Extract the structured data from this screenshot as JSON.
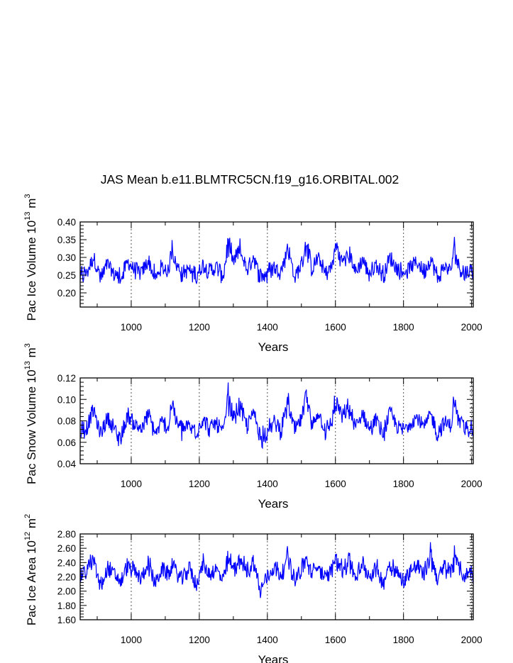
{
  "chart_data": {
    "title": "JAS Mean b.e11.BLMTRC5CN.f19_g16.ORBITAL.002",
    "panels": [
      {
        "type": "line",
        "key": "ice-volume",
        "xlabel": "Years",
        "ylabel_parts": {
          "pre": "Pac Ice Volume 10",
          "exp": "13",
          "mid": " m",
          "exp2": "3"
        },
        "xlim": [
          850,
          2005
        ],
        "ylim": [
          0.16,
          0.4
        ],
        "xticks": [
          1000,
          1200,
          1400,
          1600,
          1800,
          2000
        ],
        "xtick_labels": [
          "1000",
          "1200",
          "1400",
          "1600",
          "1800",
          "2000"
        ],
        "yticks": [
          0.2,
          0.25,
          0.3,
          0.35,
          0.4
        ],
        "ytick_labels": [
          "0.20",
          "0.25",
          "0.30",
          "0.35",
          "0.40"
        ],
        "grid_x_dotted": true,
        "color": "#0000ff",
        "x": [
          850,
          870,
          890,
          910,
          930,
          950,
          970,
          990,
          1010,
          1030,
          1050,
          1070,
          1090,
          1110,
          1120,
          1130,
          1150,
          1170,
          1190,
          1210,
          1230,
          1250,
          1270,
          1285,
          1300,
          1320,
          1340,
          1360,
          1380,
          1400,
          1420,
          1440,
          1460,
          1480,
          1500,
          1515,
          1530,
          1550,
          1570,
          1590,
          1600,
          1620,
          1640,
          1660,
          1680,
          1700,
          1720,
          1740,
          1760,
          1780,
          1800,
          1820,
          1840,
          1860,
          1880,
          1900,
          1920,
          1940,
          1950,
          1960,
          1980,
          2000,
          2005
        ],
        "values": [
          0.23,
          0.25,
          0.31,
          0.22,
          0.28,
          0.24,
          0.22,
          0.29,
          0.26,
          0.24,
          0.3,
          0.22,
          0.27,
          0.25,
          0.37,
          0.28,
          0.24,
          0.26,
          0.23,
          0.28,
          0.25,
          0.27,
          0.23,
          0.37,
          0.29,
          0.34,
          0.26,
          0.31,
          0.22,
          0.24,
          0.27,
          0.25,
          0.35,
          0.23,
          0.28,
          0.38,
          0.26,
          0.31,
          0.24,
          0.27,
          0.36,
          0.29,
          0.33,
          0.25,
          0.3,
          0.24,
          0.28,
          0.23,
          0.31,
          0.26,
          0.24,
          0.27,
          0.29,
          0.25,
          0.3,
          0.23,
          0.27,
          0.26,
          0.36,
          0.28,
          0.24,
          0.26,
          0.22
        ]
      },
      {
        "type": "line",
        "key": "snow-volume",
        "xlabel": "Years",
        "ylabel_parts": {
          "pre": "Pac Snow Volume 10",
          "exp": "13",
          "mid": " m",
          "exp2": "3"
        },
        "xlim": [
          850,
          2005
        ],
        "ylim": [
          0.04,
          0.12
        ],
        "xticks": [
          1000,
          1200,
          1400,
          1600,
          1800,
          2000
        ],
        "xtick_labels": [
          "1000",
          "1200",
          "1400",
          "1600",
          "1800",
          "2000"
        ],
        "yticks": [
          0.04,
          0.06,
          0.08,
          0.1,
          0.12
        ],
        "ytick_labels": [
          "0.04",
          "0.06",
          "0.08",
          "0.10",
          "0.12"
        ],
        "grid_x_dotted": true,
        "color": "#0000ff",
        "x": [
          850,
          870,
          890,
          910,
          930,
          950,
          970,
          990,
          1010,
          1030,
          1050,
          1070,
          1090,
          1110,
          1120,
          1130,
          1150,
          1170,
          1190,
          1210,
          1230,
          1250,
          1270,
          1285,
          1300,
          1320,
          1340,
          1360,
          1380,
          1400,
          1420,
          1440,
          1460,
          1480,
          1500,
          1515,
          1530,
          1550,
          1570,
          1590,
          1600,
          1620,
          1640,
          1660,
          1680,
          1700,
          1720,
          1740,
          1760,
          1780,
          1800,
          1820,
          1840,
          1860,
          1880,
          1900,
          1920,
          1940,
          1950,
          1960,
          1980,
          2000,
          2005
        ],
        "values": [
          0.065,
          0.072,
          0.095,
          0.06,
          0.085,
          0.068,
          0.058,
          0.088,
          0.075,
          0.066,
          0.09,
          0.062,
          0.078,
          0.07,
          0.112,
          0.08,
          0.066,
          0.074,
          0.063,
          0.082,
          0.07,
          0.076,
          0.062,
          0.112,
          0.085,
          0.1,
          0.072,
          0.092,
          0.058,
          0.066,
          0.078,
          0.068,
          0.105,
          0.064,
          0.082,
          0.115,
          0.072,
          0.092,
          0.066,
          0.078,
          0.108,
          0.084,
          0.098,
          0.07,
          0.09,
          0.066,
          0.082,
          0.062,
          0.092,
          0.074,
          0.066,
          0.078,
          0.086,
          0.07,
          0.09,
          0.062,
          0.078,
          0.074,
          0.11,
          0.082,
          0.066,
          0.074,
          0.06
        ]
      },
      {
        "type": "line",
        "key": "ice-area",
        "xlabel": "Years",
        "ylabel_parts": {
          "pre": "Pac Ice Area 10",
          "exp": "12",
          "mid": " m",
          "exp2": "2"
        },
        "xlim": [
          850,
          2005
        ],
        "ylim": [
          1.6,
          2.8
        ],
        "xticks": [
          1000,
          1200,
          1400,
          1600,
          1800,
          2000
        ],
        "xtick_labels": [
          "1000",
          "1200",
          "1400",
          "1600",
          "1800",
          "2000"
        ],
        "yticks": [
          1.6,
          1.8,
          2.0,
          2.2,
          2.4,
          2.6,
          2.8
        ],
        "ytick_labels": [
          "1.60",
          "1.80",
          "2.00",
          "2.20",
          "2.40",
          "2.60",
          "2.80"
        ],
        "grid_x_dotted": true,
        "color": "#0000ff",
        "x": [
          850,
          870,
          890,
          910,
          930,
          950,
          970,
          990,
          1010,
          1030,
          1050,
          1070,
          1090,
          1110,
          1120,
          1130,
          1150,
          1170,
          1190,
          1210,
          1230,
          1250,
          1270,
          1285,
          1300,
          1320,
          1340,
          1360,
          1380,
          1400,
          1420,
          1440,
          1460,
          1480,
          1500,
          1515,
          1530,
          1550,
          1570,
          1590,
          1600,
          1620,
          1640,
          1660,
          1680,
          1700,
          1720,
          1740,
          1760,
          1780,
          1800,
          1820,
          1840,
          1860,
          1880,
          1900,
          1920,
          1940,
          1950,
          1960,
          1980,
          2000,
          2005
        ],
        "values": [
          2.2,
          2.35,
          2.55,
          1.95,
          2.4,
          2.25,
          2.1,
          2.45,
          2.3,
          2.15,
          2.5,
          2.05,
          2.35,
          2.25,
          2.48,
          2.3,
          2.15,
          2.4,
          2.05,
          2.45,
          2.25,
          2.35,
          2.1,
          2.55,
          2.4,
          2.58,
          2.3,
          2.5,
          1.9,
          2.2,
          2.4,
          2.25,
          2.6,
          2.15,
          2.35,
          2.55,
          2.25,
          2.45,
          2.15,
          2.35,
          2.65,
          2.35,
          2.55,
          2.2,
          2.45,
          2.2,
          2.4,
          2.05,
          2.5,
          2.3,
          2.1,
          2.35,
          2.45,
          2.25,
          2.68,
          2.15,
          2.4,
          2.3,
          2.66,
          2.4,
          2.2,
          2.35,
          2.05
        ]
      }
    ]
  }
}
